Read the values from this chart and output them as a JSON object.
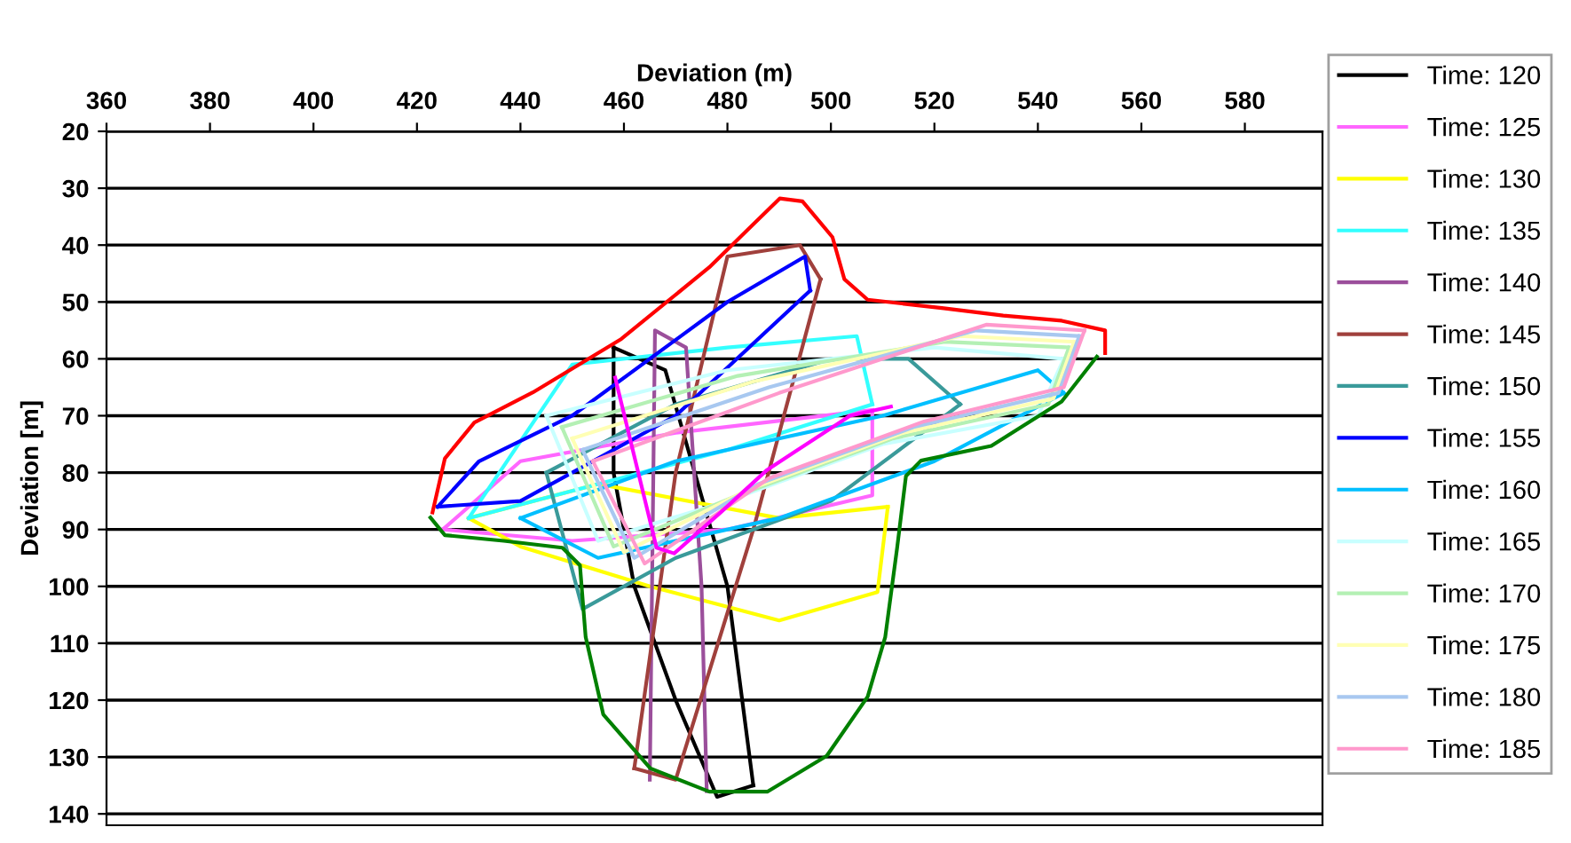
{
  "chart_data": {
    "type": "line",
    "xlabel": "Deviation (m)",
    "ylabel": "Deviation [m]",
    "xlim": [
      360,
      595
    ],
    "xticks": [
      360,
      380,
      400,
      420,
      440,
      460,
      480,
      500,
      520,
      540,
      560,
      580
    ],
    "ylim": [
      142,
      20
    ],
    "yticks": [
      20,
      30,
      40,
      50,
      60,
      70,
      80,
      90,
      100,
      110,
      120,
      130,
      140
    ],
    "grid": "y",
    "legend": "right",
    "marker": "none",
    "line_style": "solid",
    "series": [
      {
        "name": "Time: 120",
        "color": "#000000",
        "x": [
          458,
          468,
          480,
          485
        ],
        "values": [
          58,
          62,
          100,
          135
        ]
      },
      {
        "color": "#000000",
        "x": [
          485,
          478,
          470,
          462,
          458,
          458
        ],
        "values": [
          135,
          137,
          120,
          100,
          80,
          58
        ]
      },
      {
        "name": "Time: 125",
        "color": "#ff66ff",
        "x": [
          425,
          440,
          470,
          508
        ],
        "values": [
          90,
          78,
          73,
          69
        ]
      },
      {
        "color": "#ff66ff",
        "x": [
          508,
          508,
          480,
          450,
          425
        ],
        "values": [
          69,
          84,
          90,
          92,
          90
        ]
      },
      {
        "name": "Time: 130",
        "color": "#ffff00",
        "x": [
          430,
          455,
          490,
          511
        ],
        "values": [
          88,
          82,
          88,
          86
        ]
      },
      {
        "color": "#ffff00",
        "x": [
          511,
          509,
          490,
          465,
          440,
          430
        ],
        "values": [
          86,
          101,
          106,
          100,
          93,
          88
        ]
      },
      {
        "name": "Time: 135",
        "color": "#33ffff",
        "x": [
          430,
          450,
          480,
          505,
          508
        ],
        "values": [
          88,
          61,
          58,
          56,
          68
        ]
      },
      {
        "color": "#33ffff",
        "x": [
          508,
          480,
          455,
          430
        ],
        "values": [
          68,
          76,
          82,
          88
        ]
      },
      {
        "name": "Time: 140",
        "color": "#9b4f9b",
        "x": [
          465,
          466,
          472,
          475,
          476
        ],
        "values": [
          134,
          55,
          58,
          100,
          136
        ]
      },
      {
        "name": "Time: 145",
        "color": "#a0403c",
        "x": [
          462,
          470,
          480,
          494,
          498
        ],
        "values": [
          132,
          80,
          42,
          40,
          46
        ]
      },
      {
        "color": "#a0403c",
        "x": [
          498,
          485,
          470,
          462
        ],
        "values": [
          46,
          90,
          134,
          132
        ]
      },
      {
        "name": "Time: 150",
        "color": "#3a9a9a",
        "x": [
          445,
          470,
          500,
          515,
          525
        ],
        "values": [
          80,
          68,
          60,
          60,
          68
        ]
      },
      {
        "color": "#3a9a9a",
        "x": [
          525,
          500,
          470,
          452,
          445
        ],
        "values": [
          68,
          85,
          95,
          104,
          80
        ]
      },
      {
        "name": "Time: 155",
        "color": "#0000ff",
        "x": [
          424,
          440,
          470,
          496
        ],
        "values": [
          86,
          85,
          70,
          48
        ]
      },
      {
        "color": "#0000ff",
        "x": [
          496,
          495,
          480,
          450,
          432,
          424
        ],
        "values": [
          48,
          42,
          50,
          70,
          78,
          86
        ]
      },
      {
        "name": "Time: 160",
        "color": "#00bfff",
        "x": [
          440,
          470,
          510,
          540,
          545
        ],
        "values": [
          88,
          78,
          70,
          62,
          66
        ]
      },
      {
        "color": "#00bfff",
        "x": [
          545,
          520,
          490,
          455,
          440
        ],
        "values": [
          66,
          78,
          88,
          95,
          88
        ]
      },
      {
        "name": "Time: 165",
        "color": "#c8ffff",
        "x": [
          445,
          480,
          520,
          545
        ],
        "values": [
          70,
          62,
          58,
          60
        ]
      },
      {
        "color": "#c8ffff",
        "x": [
          545,
          540,
          510,
          480,
          455,
          445
        ],
        "values": [
          60,
          70,
          75,
          85,
          92,
          70
        ]
      },
      {
        "name": "Time: 170",
        "color": "#b4f0b4",
        "x": [
          448,
          482,
          522,
          546
        ],
        "values": [
          72,
          63,
          57,
          58
        ]
      },
      {
        "color": "#b4f0b4",
        "x": [
          546,
          542,
          512,
          482,
          458,
          448
        ],
        "values": [
          58,
          68,
          74,
          84,
          93,
          72
        ]
      },
      {
        "name": "Time: 175",
        "color": "#ffffb4",
        "x": [
          450,
          485,
          525,
          547
        ],
        "values": [
          74,
          64,
          56,
          57
        ]
      },
      {
        "color": "#ffffb4",
        "x": [
          547,
          543,
          514,
          484,
          460,
          450
        ],
        "values": [
          57,
          67,
          73,
          83,
          94,
          74
        ]
      },
      {
        "name": "Time: 180",
        "color": "#a8c8f0",
        "x": [
          452,
          488,
          528,
          548
        ],
        "values": [
          76,
          65,
          55,
          56
        ]
      },
      {
        "color": "#a8c8f0",
        "x": [
          548,
          544,
          516,
          486,
          462,
          452
        ],
        "values": [
          56,
          66,
          72,
          82,
          95,
          76
        ]
      },
      {
        "name": "Time: 185",
        "color": "#ff99cc",
        "x": [
          454,
          490,
          530,
          549
        ],
        "values": [
          78,
          66,
          54,
          55
        ]
      },
      {
        "color": "#ff99cc",
        "x": [
          549,
          545,
          518,
          488,
          464,
          454
        ],
        "values": [
          55,
          65,
          71,
          81,
          96,
          78
        ]
      },
      {
        "color": "#ff00ff",
        "x": [
          458.3,
          466.3,
          469.7,
          478.8,
          487.7,
          503.7,
          511.6
        ],
        "values": [
          63.3,
          93.2,
          94.2,
          86.9,
          79.5,
          70,
          68.4
        ]
      },
      {
        "color": "#ff0000",
        "x": [
          423,
          425.4,
          431.1,
          442.4,
          459.5,
          476.5,
          490.1,
          494.5,
          500.3,
          502.6,
          507.1,
          521.8,
          533.3,
          544.6,
          553,
          553
        ],
        "values": [
          87,
          77.5,
          71.2,
          65.9,
          56.5,
          43.9,
          31.8,
          32.3,
          38.6,
          46,
          49.6,
          51.1,
          52.4,
          53.3,
          55,
          59
        ]
      },
      {
        "color": "#008000",
        "x": [
          551.4,
          544.6,
          531,
          517.4,
          514.5,
          512.8,
          510.5,
          507.1,
          499.2,
          487.7,
          476.5,
          465.1,
          456,
          452.6,
          451.5,
          448.1,
          436.8,
          425.4,
          422.6
        ],
        "values": [
          59.6,
          67.5,
          75.3,
          77.9,
          80.6,
          93.2,
          108.9,
          119.4,
          129.8,
          136.1,
          136.1,
          132,
          122.5,
          108.9,
          96.3,
          93.2,
          92,
          91,
          87.9
        ]
      }
    ]
  }
}
